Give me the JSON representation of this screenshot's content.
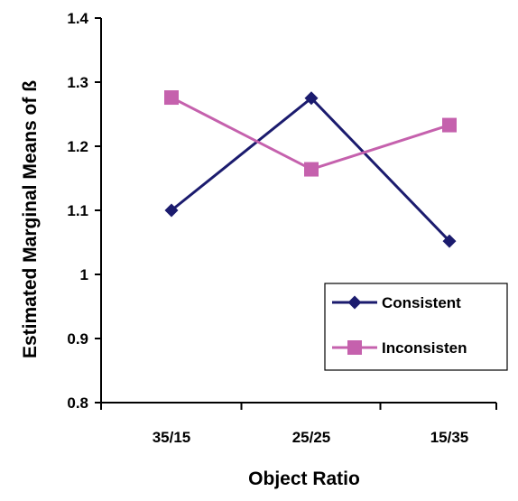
{
  "chart_data": {
    "type": "line",
    "title": "",
    "xlabel": "Object Ratio",
    "ylabel": "Estimated Marginal Means of ß",
    "categories": [
      "35/15",
      "25/25",
      "15/35"
    ],
    "ylim": [
      0.8,
      1.4
    ],
    "yticks": [
      "0.8",
      "0.9",
      "1",
      "1.1",
      "1.2",
      "1.3",
      "1.4"
    ],
    "grid": false,
    "legend_position": "bottom-right",
    "series": [
      {
        "name": "Consistent",
        "values": [
          1.1,
          1.275,
          1.052
        ],
        "color": "#1b1b6e",
        "marker": "diamond"
      },
      {
        "name": "Inconsisten",
        "values": [
          1.276,
          1.164,
          1.233
        ],
        "color": "#c561ad",
        "marker": "square"
      }
    ]
  }
}
